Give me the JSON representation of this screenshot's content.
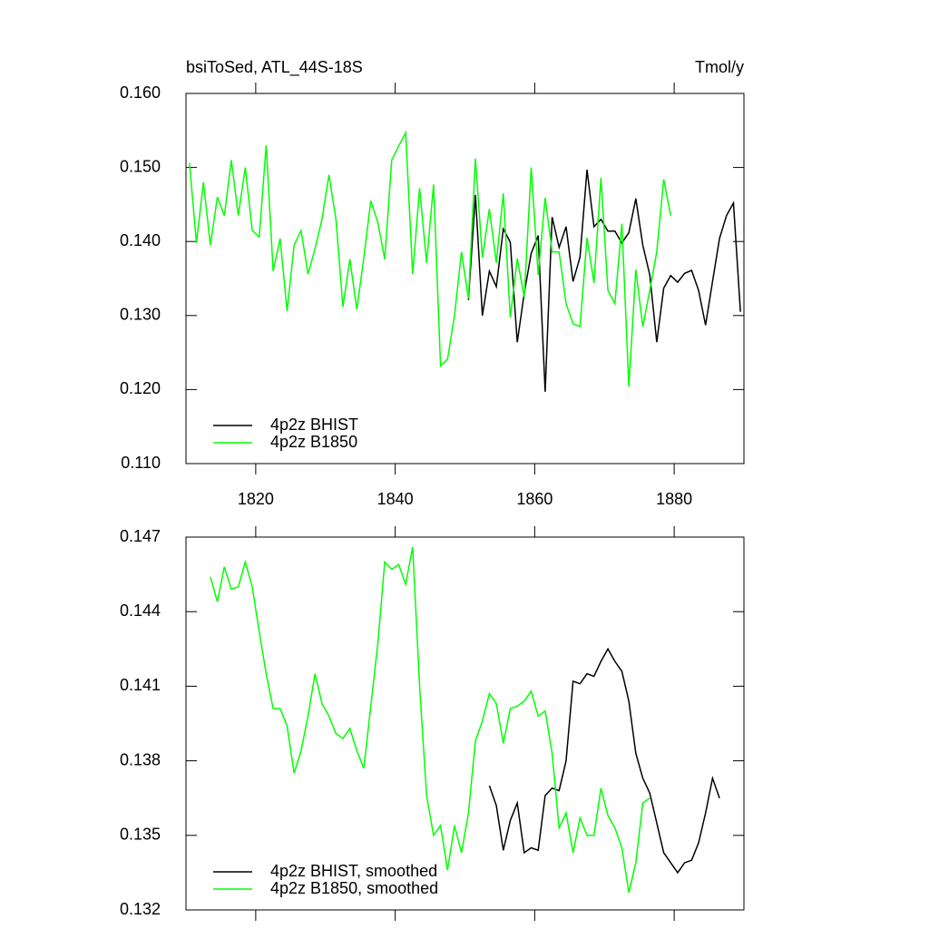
{
  "chart_data": [
    {
      "type": "line",
      "title": "bsiToSed, ATL_44S-18S",
      "units": "Tmol/y",
      "xlim": [
        1810,
        1890
      ],
      "xticks": [
        1820,
        1840,
        1860,
        1880
      ],
      "xticklabels": true,
      "ylim": [
        0.11,
        0.16
      ],
      "yticks": [
        {
          "value": 0.11,
          "label": "0.110"
        },
        {
          "value": 0.12,
          "label": "0.120"
        },
        {
          "value": 0.13,
          "label": "0.130"
        },
        {
          "value": 0.14,
          "label": "0.140"
        },
        {
          "value": 0.15,
          "label": "0.150"
        },
        {
          "value": 0.16,
          "label": "0.160"
        }
      ],
      "legend": "lower left",
      "series": [
        {
          "name": "4p2z BHIST",
          "color": "#000000",
          "x": [
            1850.5,
            1851.5,
            1852.5,
            1853.5,
            1854.5,
            1855.5,
            1856.5,
            1857.5,
            1858.5,
            1859.5,
            1860.5,
            1861.5,
            1862.5,
            1863.5,
            1864.5,
            1865.5,
            1866.5,
            1867.5,
            1868.5,
            1869.5,
            1870.5,
            1871.5,
            1872.5,
            1873.5,
            1874.5,
            1875.5,
            1876.5,
            1877.5,
            1878.5,
            1879.5,
            1880.5,
            1881.5,
            1882.5,
            1883.5,
            1884.5,
            1885.5,
            1886.5,
            1887.5,
            1888.5,
            1889.5
          ],
          "values": [
            0.1321,
            0.1463,
            0.13,
            0.136,
            0.1339,
            0.1417,
            0.1399,
            0.1264,
            0.133,
            0.1384,
            0.1408,
            0.1197,
            0.1433,
            0.1392,
            0.142,
            0.1346,
            0.1379,
            0.1497,
            0.142,
            0.143,
            0.1414,
            0.1414,
            0.1398,
            0.1412,
            0.1458,
            0.1395,
            0.1355,
            0.1264,
            0.1337,
            0.1354,
            0.1345,
            0.1357,
            0.1361,
            0.1334,
            0.1287,
            0.1346,
            0.1404,
            0.1435,
            0.1452,
            0.1305
          ]
        },
        {
          "name": "4p2z B1850",
          "color": "#00ff00",
          "x": [
            1810.5,
            1811.5,
            1812.5,
            1813.5,
            1814.5,
            1815.5,
            1816.5,
            1817.5,
            1818.5,
            1819.5,
            1820.5,
            1821.5,
            1822.5,
            1823.5,
            1824.5,
            1825.5,
            1826.5,
            1827.5,
            1828.5,
            1829.5,
            1830.5,
            1831.5,
            1832.5,
            1833.5,
            1834.5,
            1835.5,
            1836.5,
            1837.5,
            1838.5,
            1839.5,
            1840.5,
            1841.5,
            1842.5,
            1843.5,
            1844.5,
            1845.5,
            1846.5,
            1847.5,
            1848.5,
            1849.5,
            1850.5,
            1851.5,
            1852.5,
            1853.5,
            1854.5,
            1855.5,
            1856.5,
            1857.5,
            1858.5,
            1859.5,
            1860.5,
            1861.5,
            1862.5,
            1863.5,
            1864.5,
            1865.5,
            1866.5,
            1867.5,
            1868.5,
            1869.5,
            1870.5,
            1871.5,
            1872.5,
            1873.5,
            1874.5,
            1875.5,
            1876.5,
            1877.5,
            1878.5,
            1879.5
          ],
          "values": [
            0.1506,
            0.1398,
            0.148,
            0.1395,
            0.146,
            0.1435,
            0.151,
            0.1435,
            0.15,
            0.1415,
            0.1406,
            0.153,
            0.136,
            0.1404,
            0.1306,
            0.1395,
            0.1415,
            0.1356,
            0.139,
            0.143,
            0.149,
            0.143,
            0.1312,
            0.1376,
            0.1308,
            0.1378,
            0.1455,
            0.1426,
            0.1376,
            0.151,
            0.1529,
            0.1547,
            0.1356,
            0.1472,
            0.1371,
            0.1477,
            0.1232,
            0.1241,
            0.13,
            0.1386,
            0.1323,
            0.1512,
            0.1378,
            0.1444,
            0.1371,
            0.1465,
            0.1297,
            0.1377,
            0.1325,
            0.15,
            0.1355,
            0.1459,
            0.1386,
            0.1386,
            0.1316,
            0.1289,
            0.1285,
            0.1405,
            0.1344,
            0.1486,
            0.1334,
            0.1316,
            0.1424,
            0.1204,
            0.1362,
            0.1285,
            0.1334,
            0.1386,
            0.1484,
            0.1435
          ]
        }
      ]
    },
    {
      "type": "line",
      "xlim": [
        1810,
        1890
      ],
      "xticks": [
        1820,
        1840,
        1860,
        1880
      ],
      "xticklabels": false,
      "ylim": [
        0.132,
        0.147
      ],
      "yticks": [
        0.132,
        0.135,
        0.138,
        0.141,
        0.144,
        0.147
      ],
      "legend": "lower left",
      "series": [
        {
          "name": "4p2z BHIST, smoothed",
          "color": "#000000",
          "x": [
            1853.5,
            1854.5,
            1855.5,
            1856.5,
            1857.5,
            1858.5,
            1859.5,
            1860.5,
            1861.5,
            1862.5,
            1863.5,
            1864.5,
            1865.5,
            1866.5,
            1867.5,
            1868.5,
            1869.5,
            1870.5,
            1871.5,
            1872.5,
            1873.5,
            1874.5,
            1875.5,
            1876.5,
            1877.5,
            1878.5,
            1879.5,
            1880.5,
            1881.5,
            1882.5,
            1883.5,
            1884.5,
            1885.5,
            1886.5
          ],
          "values": [
            0.137,
            0.1362,
            0.1344,
            0.1356,
            0.1363,
            0.1343,
            0.1345,
            0.1344,
            0.1366,
            0.1369,
            0.1368,
            0.138,
            0.1412,
            0.1411,
            0.1415,
            0.1414,
            0.142,
            0.1425,
            0.142,
            0.1416,
            0.1404,
            0.1383,
            0.1373,
            0.1367,
            0.1355,
            0.1343,
            0.1339,
            0.1335,
            0.1339,
            0.134,
            0.1347,
            0.1359,
            0.1373,
            0.1365
          ]
        },
        {
          "name": "4p2z B1850, smoothed",
          "color": "#00ff00",
          "x": [
            1813.5,
            1814.5,
            1815.5,
            1816.5,
            1817.5,
            1818.5,
            1819.5,
            1820.5,
            1821.5,
            1822.5,
            1823.5,
            1824.5,
            1825.5,
            1826.5,
            1827.5,
            1828.5,
            1829.5,
            1830.5,
            1831.5,
            1832.5,
            1833.5,
            1834.5,
            1835.5,
            1836.5,
            1837.5,
            1838.5,
            1839.5,
            1840.5,
            1841.5,
            1842.5,
            1843.5,
            1844.5,
            1845.5,
            1846.5,
            1847.5,
            1848.5,
            1849.5,
            1850.5,
            1851.5,
            1852.5,
            1853.5,
            1854.5,
            1855.5,
            1856.5,
            1857.5,
            1858.5,
            1859.5,
            1860.5,
            1861.5,
            1862.5,
            1863.5,
            1864.5,
            1865.5,
            1866.5,
            1867.5,
            1868.5,
            1869.5,
            1870.5,
            1871.5,
            1872.5,
            1873.5,
            1874.5,
            1875.5,
            1876.5
          ],
          "values": [
            0.1454,
            0.1444,
            0.1458,
            0.1449,
            0.145,
            0.146,
            0.145,
            0.1432,
            0.1415,
            0.1401,
            0.1401,
            0.1394,
            0.1375,
            0.1384,
            0.1398,
            0.1415,
            0.1403,
            0.1398,
            0.1391,
            0.1389,
            0.1393,
            0.1384,
            0.1377,
            0.1402,
            0.1427,
            0.146,
            0.1457,
            0.1459,
            0.1451,
            0.1466,
            0.141,
            0.1366,
            0.135,
            0.1354,
            0.1336,
            0.1354,
            0.1343,
            0.1359,
            0.1388,
            0.1396,
            0.1407,
            0.1403,
            0.1387,
            0.1401,
            0.1402,
            0.1404,
            0.1408,
            0.1398,
            0.14,
            0.1383,
            0.1353,
            0.1359,
            0.1343,
            0.1357,
            0.135,
            0.135,
            0.1369,
            0.1358,
            0.1353,
            0.1345,
            0.1327,
            0.1339,
            0.1363,
            0.1365
          ]
        }
      ]
    }
  ]
}
